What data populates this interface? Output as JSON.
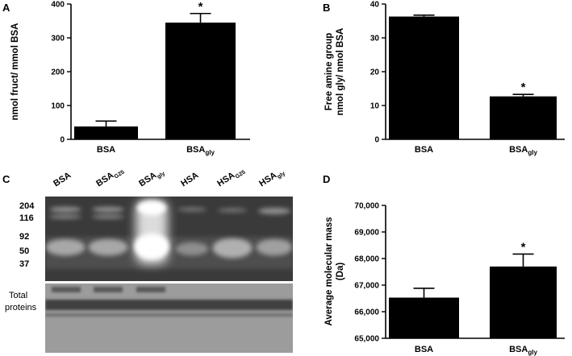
{
  "panels": {
    "A": "A",
    "B": "B",
    "C": "C",
    "D": "D"
  },
  "chart_data": [
    {
      "type": "bar",
      "panel": "A",
      "categories": [
        {
          "main": "BSA",
          "sub": ""
        },
        {
          "main": "BSA",
          "sub": "gly"
        }
      ],
      "values": [
        38,
        345
      ],
      "errors": [
        16,
        27
      ],
      "significance": [
        "",
        "*"
      ],
      "ylabel": "nmol fruct/ mmol BSA",
      "ylim": [
        0,
        400
      ],
      "yticks": [
        0,
        100,
        200,
        300,
        400
      ],
      "ytick_labels": [
        "0",
        "100",
        "200",
        "300",
        "400"
      ]
    },
    {
      "type": "bar",
      "panel": "B",
      "categories": [
        {
          "main": "BSA",
          "sub": ""
        },
        {
          "main": "BSA",
          "sub": "gly"
        }
      ],
      "values": [
        36.3,
        12.7
      ],
      "errors": [
        0.4,
        0.6
      ],
      "significance": [
        "",
        "*"
      ],
      "ylabel_lines": [
        "Free amine group",
        "nmol gly/ nmol BSA"
      ],
      "ylim": [
        0,
        40
      ],
      "yticks": [
        0,
        10,
        20,
        30,
        40
      ],
      "ytick_labels": [
        "0",
        "10",
        "20",
        "30",
        "40"
      ]
    },
    {
      "type": "bar",
      "panel": "D",
      "categories": [
        {
          "main": "BSA",
          "sub": ""
        },
        {
          "main": "BSA",
          "sub": "gly"
        }
      ],
      "values": [
        66530,
        67700
      ],
      "errors": [
        350,
        470
      ],
      "significance": [
        "",
        "*"
      ],
      "ylabel_lines": [
        "Average molecular mass",
        "(Da)"
      ],
      "ylim": [
        65000,
        70000
      ],
      "yticks": [
        65000,
        66000,
        67000,
        68000,
        69000,
        70000
      ],
      "ytick_labels": [
        "65,000",
        "66,000",
        "67,000",
        "68,000",
        "69,000",
        "70,000"
      ]
    }
  ],
  "blot": {
    "lanes": [
      {
        "main": "BSA",
        "sub": ""
      },
      {
        "main": "BSA",
        "sub": "G25"
      },
      {
        "main": "BSA",
        "sub": "gly"
      },
      {
        "main": "HSA",
        "sub": ""
      },
      {
        "main": "HSA",
        "sub": "G25"
      },
      {
        "main": "HSA",
        "sub": "gly"
      }
    ],
    "markers": [
      "204",
      "116",
      "92",
      "50",
      "37"
    ],
    "total_label_lines": [
      "Total",
      "proteins"
    ]
  }
}
